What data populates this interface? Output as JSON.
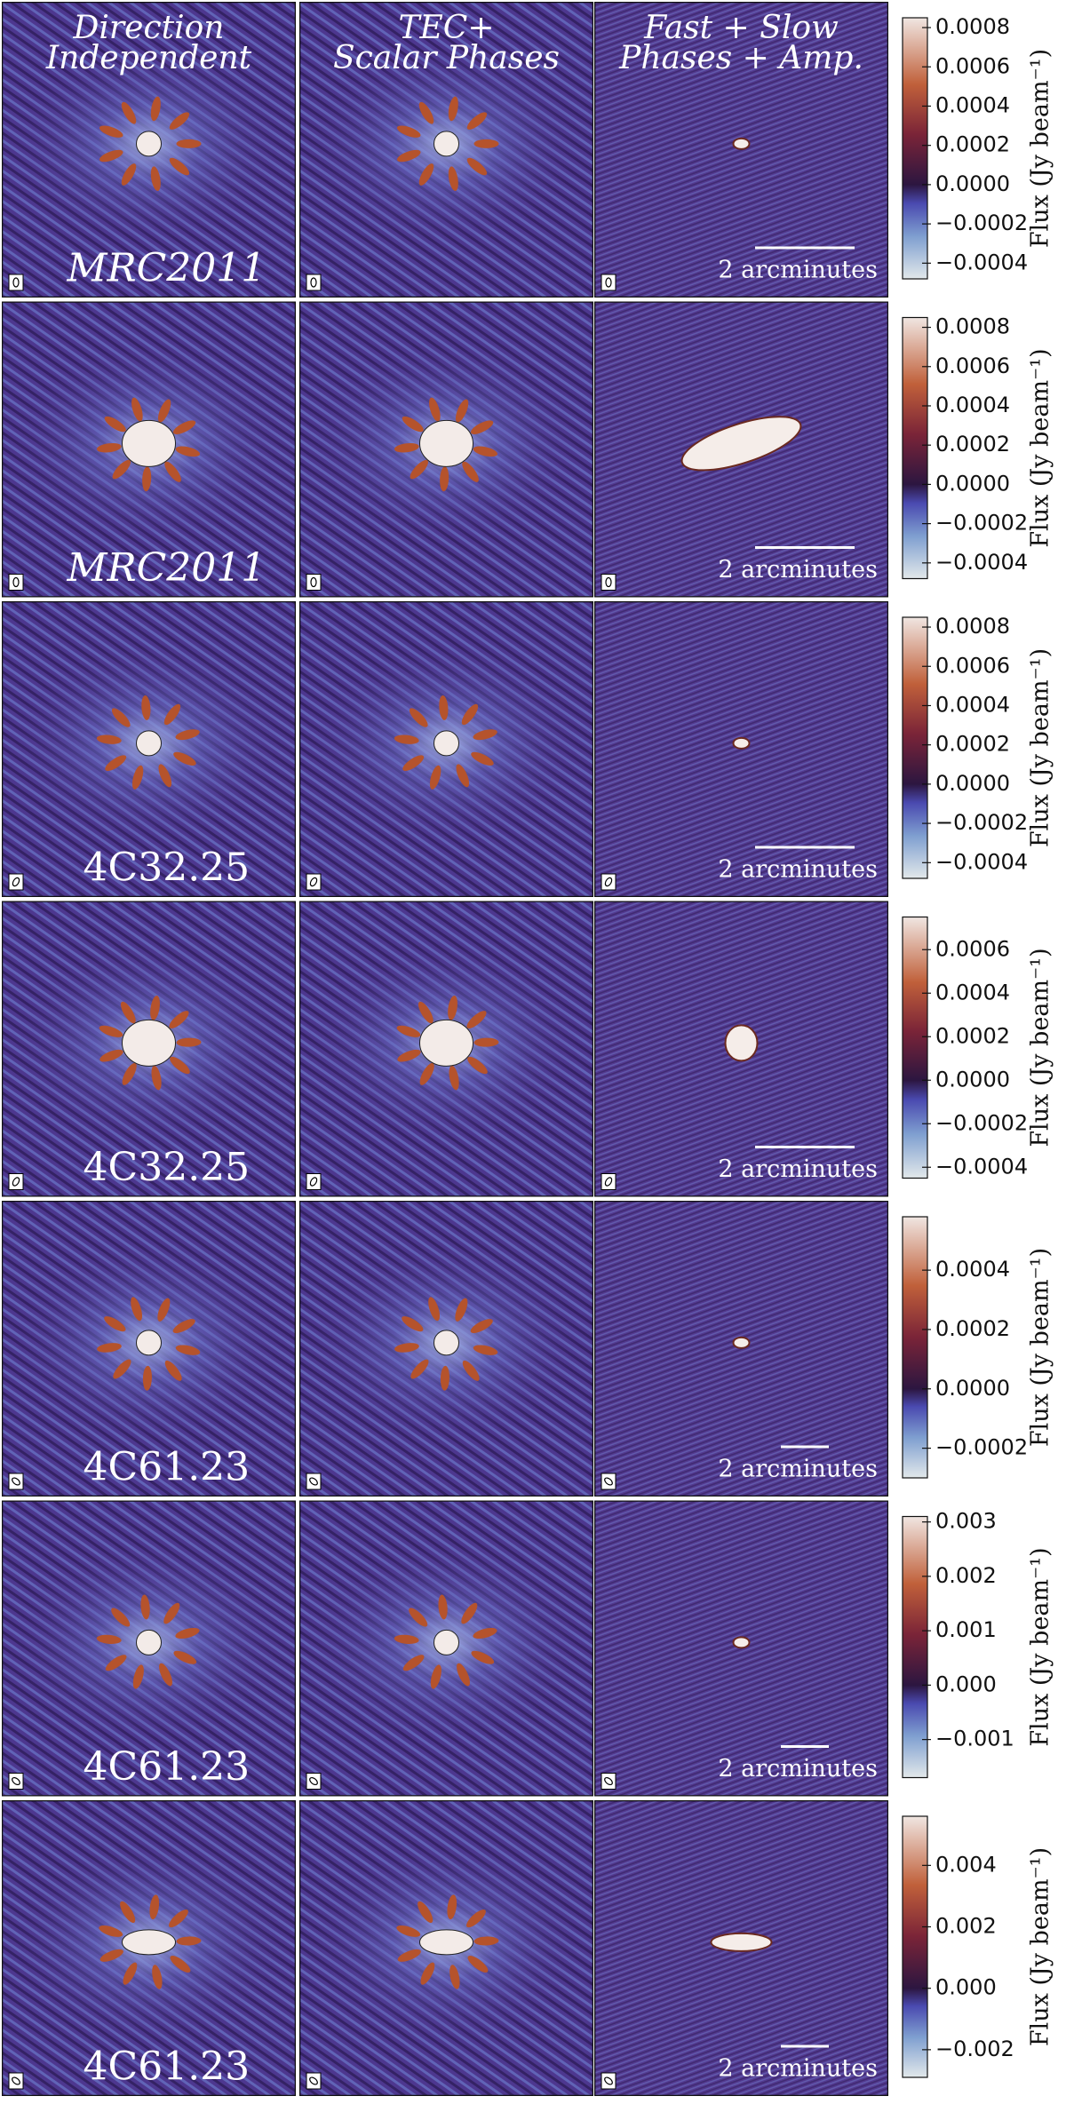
{
  "columns": [
    [
      "Direction",
      "Independent"
    ],
    [
      "TEC+",
      "Scalar Phases"
    ],
    [
      "Fast + Slow",
      "Phases + Amp."
    ]
  ],
  "rows": [
    {
      "source": "MRC2011",
      "scale_label": "2 arcminutes",
      "colorbar": {
        "label": "Flux (Jy beam⁻¹)",
        "lim": [
          -0.00048,
          0.00085
        ],
        "ticks": [
          {
            "value": 0.0008,
            "label": "0.0008"
          },
          {
            "value": 0.0006,
            "label": "0.0006"
          },
          {
            "value": 0.0004,
            "label": "0.0004"
          },
          {
            "value": 0.0002,
            "label": "0.0002"
          },
          {
            "value": 0,
            "label": "0.0000"
          },
          {
            "value": -0.0002,
            "label": "−0.0002"
          },
          {
            "value": -0.0004,
            "label": "−0.0004"
          }
        ]
      }
    },
    {
      "source": "MRC2011",
      "scale_label": "2 arcminutes",
      "colorbar": {
        "label": "Flux (Jy beam⁻¹)",
        "lim": [
          -0.00048,
          0.00085
        ],
        "ticks": [
          {
            "value": 0.0008,
            "label": "0.0008"
          },
          {
            "value": 0.0006,
            "label": "0.0006"
          },
          {
            "value": 0.0004,
            "label": "0.0004"
          },
          {
            "value": 0.0002,
            "label": "0.0002"
          },
          {
            "value": 0,
            "label": "0.0000"
          },
          {
            "value": -0.0002,
            "label": "−0.0002"
          },
          {
            "value": -0.0004,
            "label": "−0.0004"
          }
        ]
      }
    },
    {
      "source": "4C32.25",
      "scale_label": "2 arcminutes",
      "colorbar": {
        "label": "Flux (Jy beam⁻¹)",
        "lim": [
          -0.00048,
          0.00085
        ],
        "ticks": [
          {
            "value": 0.0008,
            "label": "0.0008"
          },
          {
            "value": 0.0006,
            "label": "0.0006"
          },
          {
            "value": 0.0004,
            "label": "0.0004"
          },
          {
            "value": 0.0002,
            "label": "0.0002"
          },
          {
            "value": 0,
            "label": "0.0000"
          },
          {
            "value": -0.0002,
            "label": "−0.0002"
          },
          {
            "value": -0.0004,
            "label": "−0.0004"
          }
        ]
      }
    },
    {
      "source": "4C32.25",
      "scale_label": "2 arcminutes",
      "colorbar": {
        "label": "Flux (Jy beam⁻¹)",
        "lim": [
          -0.00045,
          0.00075
        ],
        "ticks": [
          {
            "value": 0.0006,
            "label": "0.0006"
          },
          {
            "value": 0.0004,
            "label": "0.0004"
          },
          {
            "value": 0.0002,
            "label": "0.0002"
          },
          {
            "value": 0,
            "label": "0.0000"
          },
          {
            "value": -0.0002,
            "label": "−0.0002"
          },
          {
            "value": -0.0004,
            "label": "−0.0004"
          }
        ]
      }
    },
    {
      "source": "4C61.23",
      "scale_label": "2 arcminutes",
      "colorbar": {
        "label": "Flux (Jy beam⁻¹)",
        "lim": [
          -0.0003,
          0.00058
        ],
        "ticks": [
          {
            "value": 0.0004,
            "label": "0.0004"
          },
          {
            "value": 0.0002,
            "label": "0.0002"
          },
          {
            "value": 0,
            "label": "0.0000"
          },
          {
            "value": -0.0002,
            "label": "−0.0002"
          }
        ]
      }
    },
    {
      "source": "4C61.23",
      "scale_label": "2 arcminutes",
      "colorbar": {
        "label": "Flux (Jy beam⁻¹)",
        "lim": [
          -0.0017,
          0.0031
        ],
        "ticks": [
          {
            "value": 0.003,
            "label": "0.003"
          },
          {
            "value": 0.002,
            "label": "0.002"
          },
          {
            "value": 0.001,
            "label": "0.001"
          },
          {
            "value": 0,
            "label": "0.000"
          },
          {
            "value": -0.001,
            "label": "−0.001"
          }
        ]
      }
    },
    {
      "source": "4C61.23",
      "scale_label": "2 arcminutes",
      "colorbar": {
        "label": "Flux (Jy beam⁻¹)",
        "lim": [
          -0.0029,
          0.0056
        ],
        "ticks": [
          {
            "value": 0.004,
            "label": "0.004"
          },
          {
            "value": 0.002,
            "label": "0.002"
          },
          {
            "value": 0,
            "label": "0.000"
          },
          {
            "value": -0.002,
            "label": "−0.002"
          }
        ]
      }
    }
  ]
}
